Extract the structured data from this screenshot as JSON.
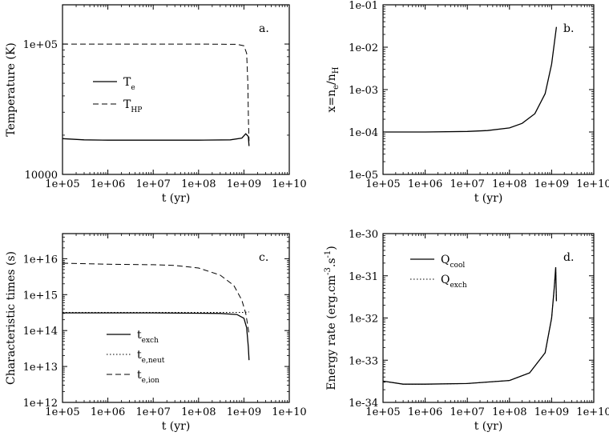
{
  "chart_data": [
    {
      "id": "a",
      "type": "line",
      "panel_label": "a.",
      "xlabel": "t (yr)",
      "ylabel": "Temperature (K)",
      "xscale": "log",
      "yscale": "log",
      "xlim": [
        100000,
        10000000000
      ],
      "ylim": [
        10000,
        200000
      ],
      "xticks": [
        "1e+05",
        "1e+06",
        "1e+07",
        "1e+08",
        "1e+09",
        "1e+10"
      ],
      "xtick_values": [
        100000,
        1000000,
        10000000,
        100000000,
        1000000000,
        10000000000
      ],
      "yticks": [
        "10000",
        "1e+05"
      ],
      "ytick_values": [
        10000,
        100000
      ],
      "legend_position": "center-left",
      "series": [
        {
          "name": "T_e",
          "legend": {
            "main": "T",
            "sub": "e"
          },
          "style": "solid",
          "x": [
            100000,
            300000,
            1000000,
            10000000,
            100000000,
            500000000,
            900000000,
            1100000000,
            1250000000,
            1300000000
          ],
          "y": [
            18800,
            18400,
            18300,
            18300,
            18300,
            18400,
            19000,
            20500,
            19500,
            16500
          ]
        },
        {
          "name": "T_HP",
          "legend": {
            "main": "T",
            "sub": "HP"
          },
          "style": "dashed",
          "x": [
            100000,
            10000000,
            100000000,
            700000000,
            1000000000,
            1150000000,
            1220000000,
            1260000000,
            1300000000
          ],
          "y": [
            100000,
            100000,
            100000,
            99500,
            97000,
            85000,
            50000,
            25000,
            18000
          ]
        }
      ]
    },
    {
      "id": "b",
      "type": "line",
      "panel_label": "b.",
      "xlabel": "t (yr)",
      "ylabel": "x=nₑ/nₕ",
      "ylabel_parts": {
        "a": "x=n",
        "sub1": "e",
        "b": "/n",
        "sub2": "H"
      },
      "xscale": "log",
      "yscale": "log",
      "xlim": [
        100000,
        10000000000
      ],
      "ylim": [
        1e-05,
        0.1
      ],
      "xticks": [
        "1e+05",
        "1e+06",
        "1e+07",
        "1e+08",
        "1e+09",
        "1e+10"
      ],
      "xtick_values": [
        100000,
        1000000,
        10000000,
        100000000,
        1000000000,
        10000000000
      ],
      "yticks": [
        "1e-05",
        "1e-04",
        "1e-03",
        "1e-02",
        "1e-01"
      ],
      "ytick_values": [
        1e-05,
        0.0001,
        0.001,
        0.01,
        0.1
      ],
      "series": [
        {
          "name": "x",
          "style": "solid",
          "x": [
            100000,
            1000000,
            10000000,
            30000000,
            100000000,
            200000000,
            400000000,
            700000000,
            1000000000,
            1300000000
          ],
          "y": [
            0.0001,
            0.0001,
            0.000103,
            0.000108,
            0.000125,
            0.00016,
            0.00027,
            0.0008,
            0.004,
            0.03
          ]
        }
      ]
    },
    {
      "id": "c",
      "type": "line",
      "panel_label": "c.",
      "xlabel": "t (yr)",
      "ylabel": "Characteristic times (s)",
      "xscale": "log",
      "yscale": "log",
      "xlim": [
        100000,
        10000000000
      ],
      "ylim": [
        1000000000000.0,
        5e+16
      ],
      "xticks": [
        "1e+05",
        "1e+06",
        "1e+07",
        "1e+08",
        "1e+09",
        "1e+10"
      ],
      "xtick_values": [
        100000,
        1000000,
        10000000,
        100000000,
        1000000000,
        10000000000
      ],
      "yticks": [
        "1e+12",
        "1e+13",
        "1e+14",
        "1e+15",
        "1e+16"
      ],
      "ytick_values": [
        1000000000000.0,
        10000000000000.0,
        100000000000000.0,
        1000000000000000.0,
        1e+16
      ],
      "legend_position": "bottom-left",
      "series": [
        {
          "name": "t_exch",
          "legend": {
            "main": "t",
            "sub": "exch"
          },
          "style": "solid",
          "x": [
            100000,
            10000000,
            300000000,
            700000000,
            1000000000,
            1150000000,
            1250000000,
            1300000000
          ],
          "y": [
            310000000000000.0,
            310000000000000.0,
            300000000000000.0,
            280000000000000.0,
            220000000000000.0,
            120000000000000.0,
            35000000000000.0,
            15000000000000.0
          ]
        },
        {
          "name": "t_e,neut",
          "legend": {
            "main": "t",
            "sub": "e,neut"
          },
          "style": "dotted",
          "x": [
            100000,
            10000000,
            1000000000,
            1300000000
          ],
          "y": [
            320000000000000.0,
            320000000000000.0,
            320000000000000.0,
            330000000000000.0
          ]
        },
        {
          "name": "t_e,ion",
          "legend": {
            "main": "t",
            "sub": "e,ion"
          },
          "style": "dashed",
          "x": [
            100000,
            1000000,
            10000000,
            30000000,
            100000000,
            300000000,
            600000000,
            900000000,
            1100000000,
            1200000000,
            1300000000
          ],
          "y": [
            7500000000000000.0,
            7000000000000000.0,
            6800000000000000.0,
            6500000000000000.0,
            5500000000000000.0,
            3500000000000000.0,
            1800000000000000.0,
            700000000000000.0,
            300000000000000.0,
            150000000000000.0,
            80000000000000.0
          ]
        }
      ]
    },
    {
      "id": "d",
      "type": "line",
      "panel_label": "d.",
      "xlabel": "t (yr)",
      "ylabel": "Energy rate (erg.cm⁻³.s⁻¹)",
      "ylabel_parts": {
        "a": "Energy rate (erg.cm",
        "sup1": "-3",
        "b": ".s",
        "sup2": "-1",
        "c": ")"
      },
      "xscale": "log",
      "yscale": "log",
      "xlim": [
        100000,
        10000000000
      ],
      "ylim": [
        1e-34,
        1e-30
      ],
      "xticks": [
        "1e+05",
        "1e+06",
        "1e+07",
        "1e+08",
        "1e+09",
        "1e+10"
      ],
      "xtick_values": [
        100000,
        1000000,
        10000000,
        100000000,
        1000000000,
        10000000000
      ],
      "yticks": [
        "1e-34",
        "1e-33",
        "1e-32",
        "1e-31",
        "1e-30"
      ],
      "ytick_values": [
        1e-34,
        1e-33,
        1e-32,
        1e-31,
        1e-30
      ],
      "legend_position": "top-left",
      "series": [
        {
          "name": "Q_cool",
          "legend": {
            "main": "Q",
            "sub": "cool"
          },
          "style": "solid",
          "x": [
            100000,
            300000,
            1000000,
            10000000,
            100000000,
            300000000,
            700000000,
            1000000000,
            1150000000,
            1250000000,
            1300000000
          ],
          "y": [
            3.2e-34,
            2.7e-34,
            2.7e-34,
            2.8e-34,
            3.3e-34,
            5e-34,
            1.5e-33,
            1e-32,
            5e-32,
            1.6e-31,
            2.5e-32
          ]
        },
        {
          "name": "Q_exch",
          "legend": {
            "main": "Q",
            "sub": "exch"
          },
          "style": "dotted",
          "x": [
            100000,
            300000,
            1000000,
            10000000,
            100000000,
            300000000,
            700000000,
            1000000000,
            1150000000,
            1250000000,
            1300000000
          ],
          "y": [
            3.2e-34,
            2.7e-34,
            2.7e-34,
            2.8e-34,
            3.3e-34,
            5e-34,
            1.5e-33,
            1e-32,
            5e-32,
            1.5e-31,
            2.5e-32
          ]
        }
      ]
    }
  ]
}
